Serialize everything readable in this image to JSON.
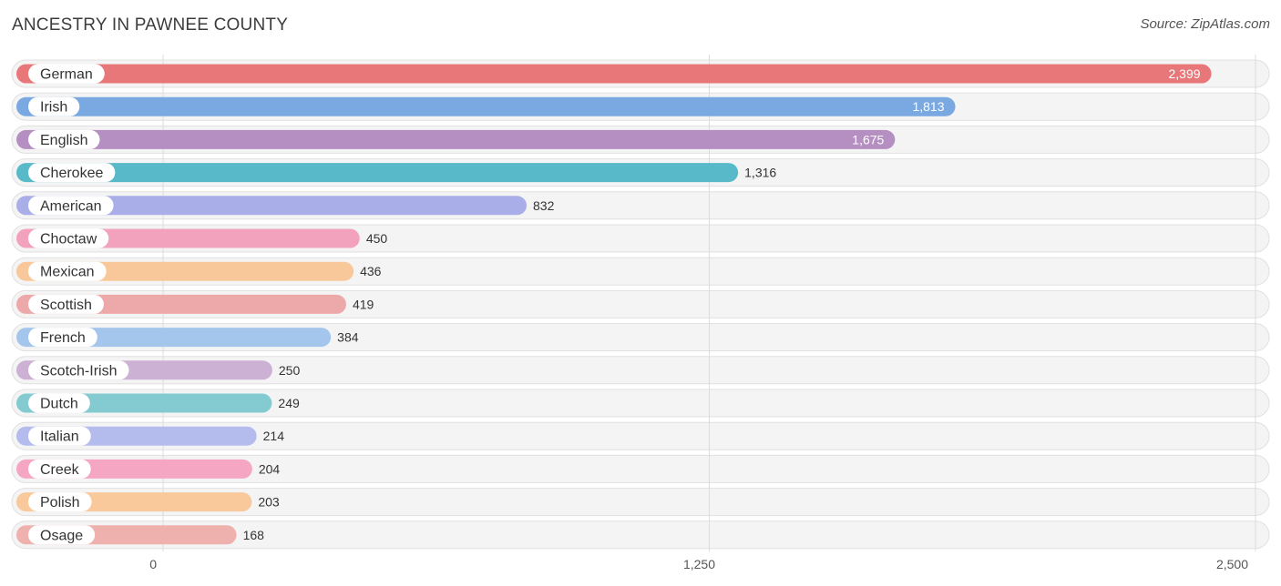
{
  "header": {
    "title": "ANCESTRY IN PAWNEE COUNTY",
    "source": "Source: ZipAtlas.com"
  },
  "chart_data": {
    "type": "bar",
    "orientation": "horizontal",
    "title": "ANCESTRY IN PAWNEE COUNTY",
    "xlim": [
      0,
      2500
    ],
    "ticks": [
      0,
      1250,
      2500
    ],
    "tick_labels": [
      "0",
      "1,250",
      "2,500"
    ],
    "grid": true,
    "categories": [
      "German",
      "Irish",
      "English",
      "Cherokee",
      "American",
      "Choctaw",
      "Mexican",
      "Scottish",
      "French",
      "Scotch-Irish",
      "Dutch",
      "Italian",
      "Creek",
      "Polish",
      "Osage"
    ],
    "values": [
      2399,
      1813,
      1675,
      1316,
      832,
      450,
      436,
      419,
      384,
      250,
      249,
      214,
      204,
      203,
      168
    ],
    "value_labels": [
      "2,399",
      "1,813",
      "1,675",
      "1,316",
      "832",
      "450",
      "436",
      "419",
      "384",
      "250",
      "249",
      "214",
      "204",
      "203",
      "168"
    ],
    "colors": [
      "#e8777a",
      "#7aa8e0",
      "#b58fc2",
      "#58b9c9",
      "#a9aee8",
      "#f3a2bd",
      "#f9c89a",
      "#eda9a9",
      "#a5c6ec",
      "#cdb1d4",
      "#83cbd1",
      "#b4bcee",
      "#f4a6c2",
      "#f9c99c",
      "#eeb1ae"
    ]
  }
}
